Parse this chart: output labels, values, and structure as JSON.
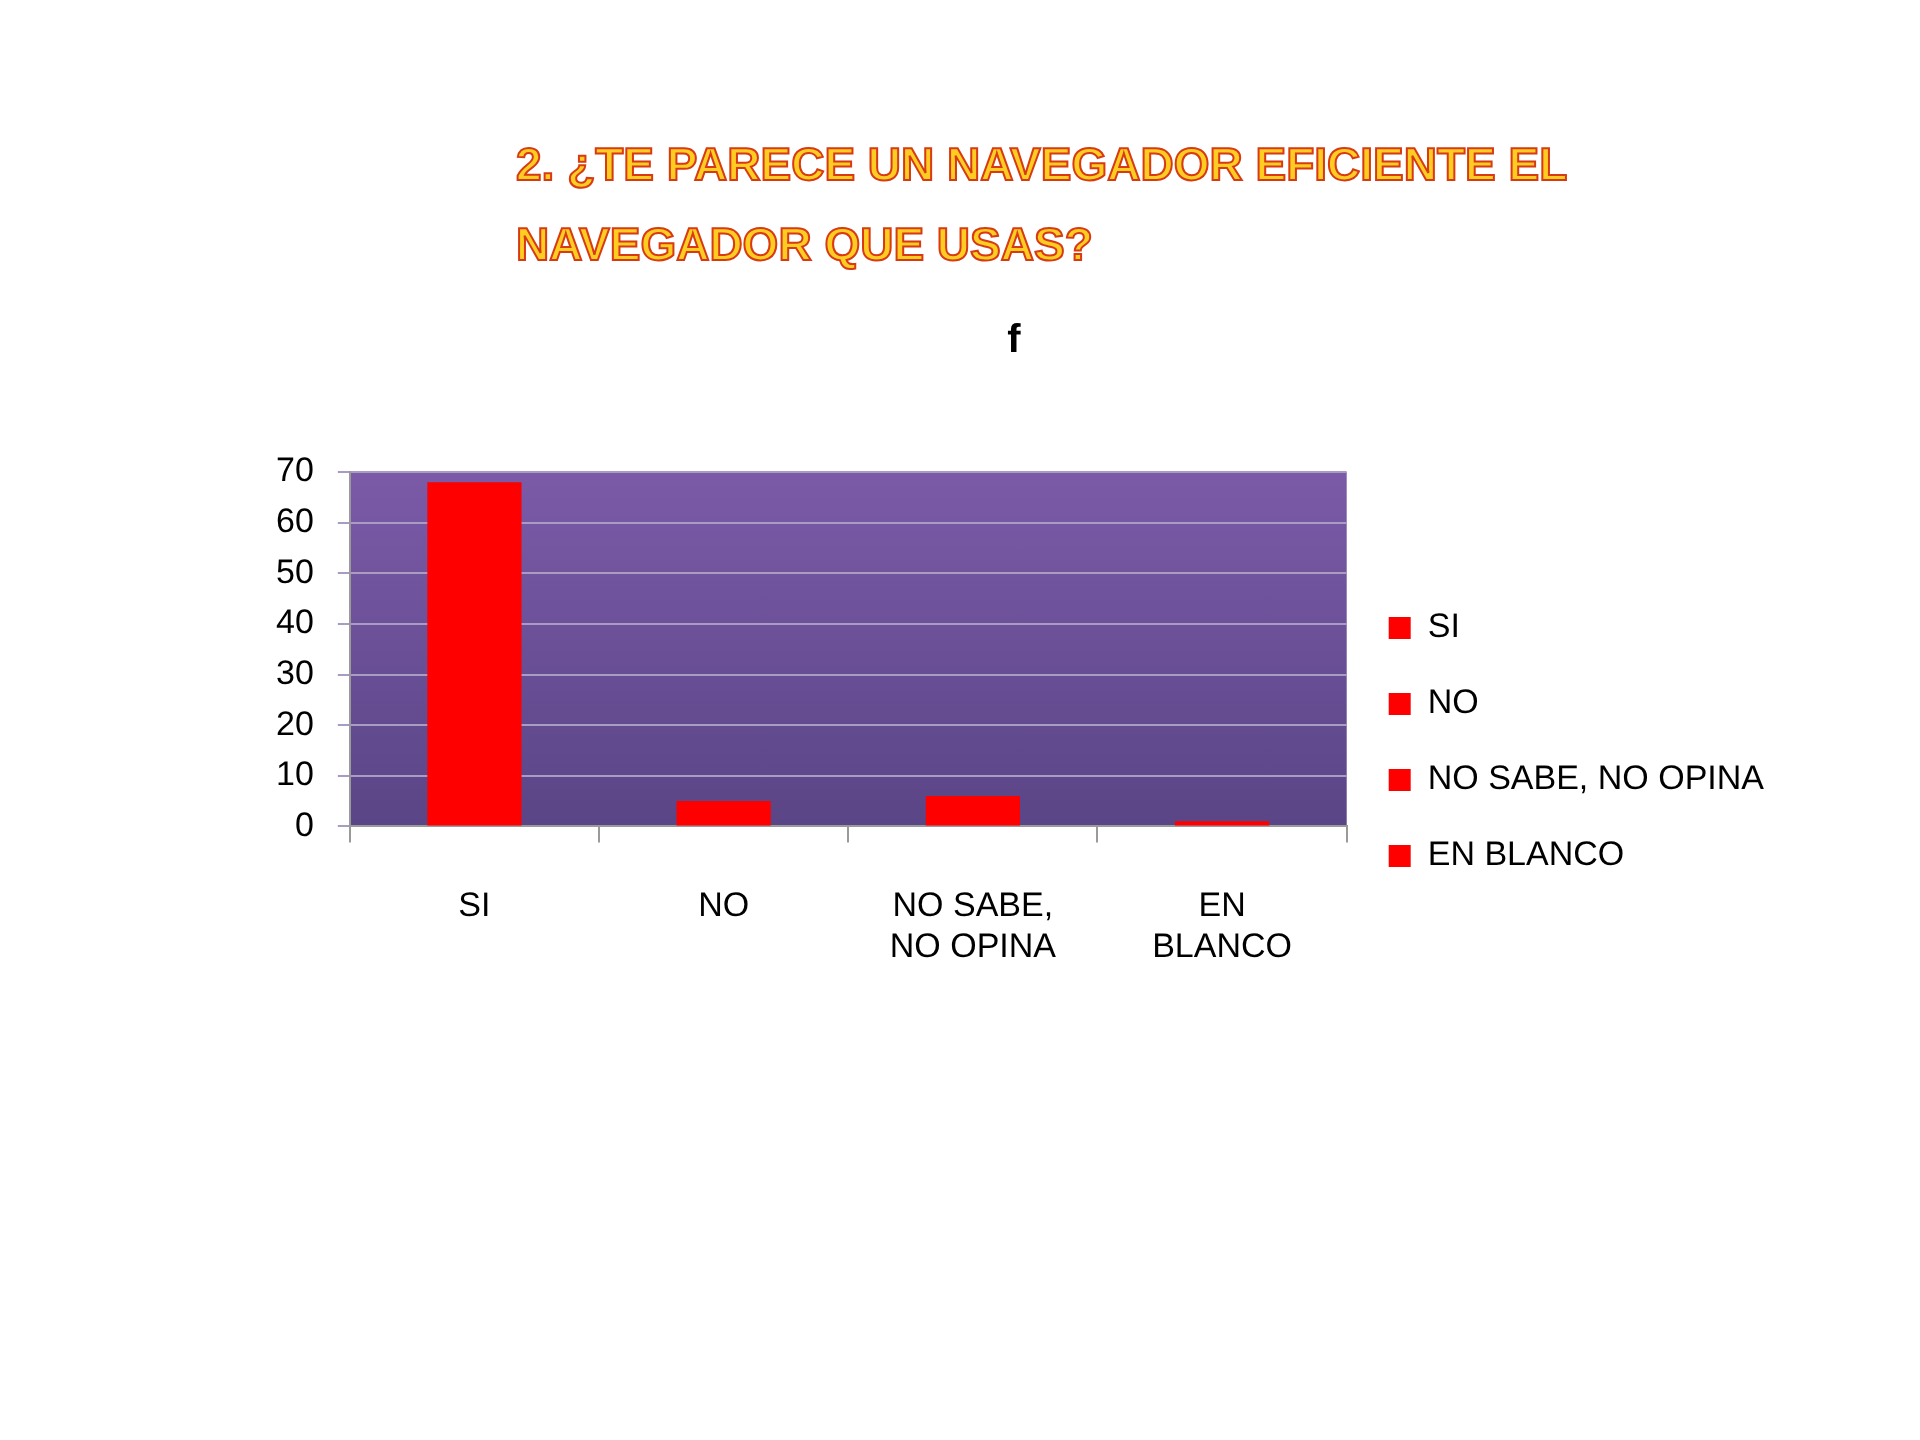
{
  "chart_data": {
    "type": "bar",
    "title": "2. ¿TE PARECE UN NAVEGADOR EFICIENTE EL NAVEGADOR QUE USAS?",
    "subtitle": "f",
    "categories": [
      "SI",
      "NO",
      "NO SABE, NO OPINA",
      "EN BLANCO"
    ],
    "series": [
      {
        "name": "SI",
        "color": "#ff0000",
        "values": [
          68,
          null,
          null,
          null
        ]
      },
      {
        "name": "NO",
        "color": "#ff0000",
        "values": [
          null,
          5,
          null,
          null
        ]
      },
      {
        "name": "NO SABE, NO OPINA",
        "color": "#ff0000",
        "values": [
          null,
          null,
          6,
          null
        ]
      },
      {
        "name": "EN BLANCO",
        "color": "#ff0000",
        "values": [
          null,
          null,
          null,
          1
        ]
      }
    ],
    "ylim": [
      0,
      70
    ],
    "yticks": [
      0,
      10,
      20,
      30,
      40,
      50,
      60,
      70
    ],
    "grid": "y",
    "legend": "right"
  }
}
